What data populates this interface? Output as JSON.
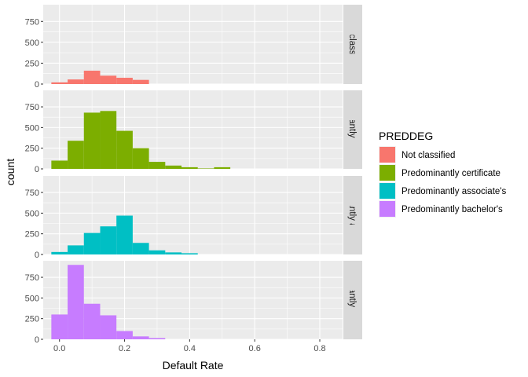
{
  "chart_data": {
    "type": "bar",
    "subtype": "faceted-histogram",
    "xlabel": "Default Rate",
    "ylabel": "count",
    "xlim": [
      -0.05,
      0.87
    ],
    "ylim": [
      0,
      950
    ],
    "xticks": [
      0.0,
      0.2,
      0.4,
      0.6,
      0.8
    ],
    "xtick_labels": [
      "0.0",
      "0.2",
      "0.4",
      "0.6",
      "0.8"
    ],
    "yticks": [
      0,
      250,
      500,
      750
    ],
    "ytick_labels": [
      "0",
      "250",
      "500",
      "750"
    ],
    "grid": true,
    "bin_width": 0.05,
    "bin_starts": [
      -0.025,
      0.025,
      0.075,
      0.125,
      0.175,
      0.225,
      0.275,
      0.325,
      0.375,
      0.425,
      0.475,
      0.525
    ],
    "legend": {
      "title": "PREDDEG",
      "placement": "right",
      "entries": [
        "Not classified",
        "Predominantly certificate",
        "Predominantly associate's",
        "Predominantly bachelor's"
      ]
    },
    "series": [
      {
        "name": "Not classified",
        "strip": "Not classified",
        "color": "#F8766D",
        "values": [
          20,
          55,
          160,
          100,
          75,
          50,
          0,
          0,
          0,
          0,
          0,
          0
        ]
      },
      {
        "name": "Predominantly certificate",
        "strip": "Predominantly certificate",
        "color": "#7CAE00",
        "values": [
          100,
          340,
          680,
          700,
          460,
          250,
          85,
          40,
          20,
          5,
          20,
          0
        ]
      },
      {
        "name": "Predominantly associate's",
        "strip": "Predominantly associate's",
        "color": "#00BFC4",
        "values": [
          30,
          110,
          260,
          340,
          470,
          140,
          50,
          25,
          15,
          0,
          0,
          0
        ]
      },
      {
        "name": "Predominantly bachelor's",
        "strip": "Predominantly bachelor's",
        "color": "#C77CFF",
        "values": [
          300,
          900,
          430,
          290,
          100,
          35,
          15,
          0,
          0,
          0,
          0,
          0
        ]
      }
    ]
  }
}
